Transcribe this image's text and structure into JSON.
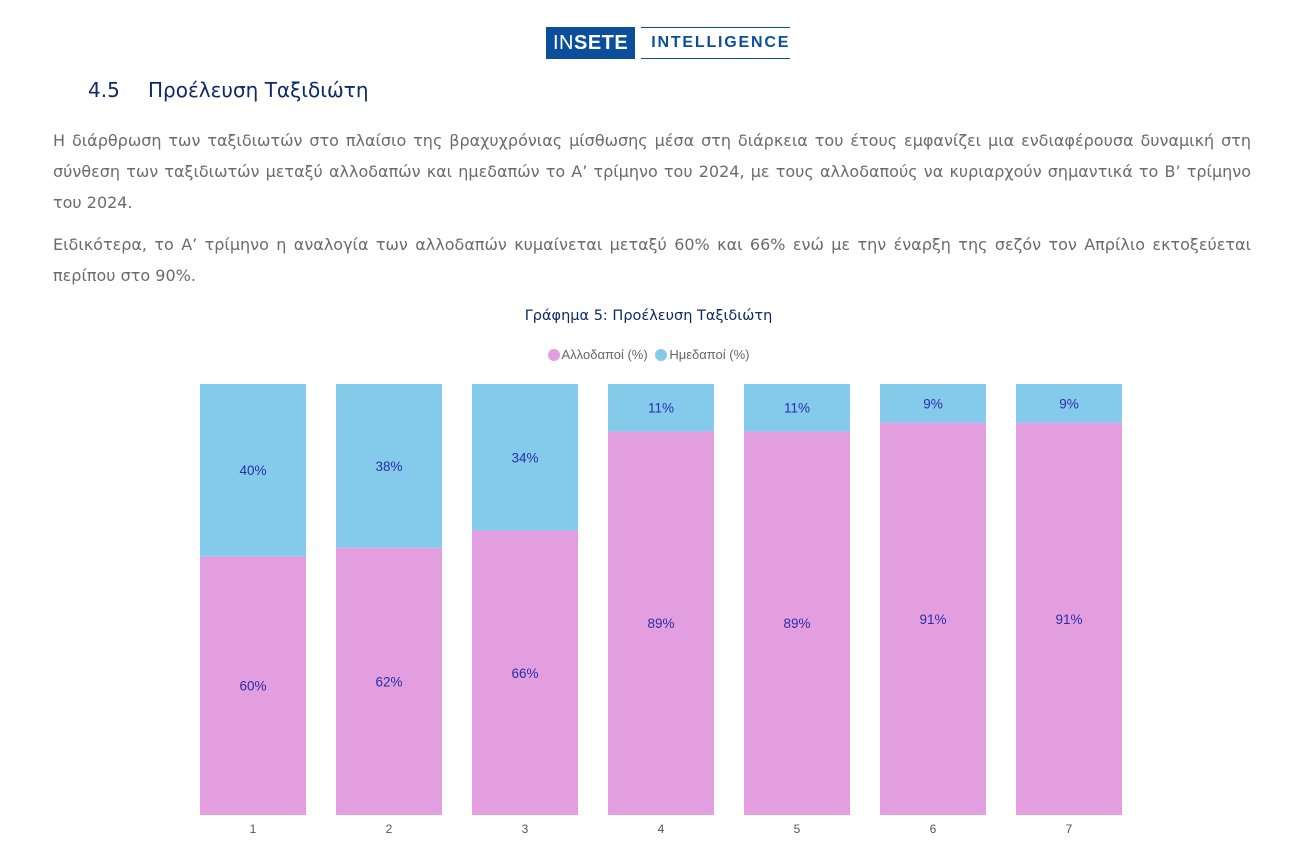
{
  "logo": {
    "part1": "IN",
    "part2": "SETE",
    "part3": "INTELLIGENCE"
  },
  "section": {
    "number": "4.5",
    "title": "Προέλευση Ταξιδιώτη"
  },
  "paragraphs": [
    "Η διάρθρωση των ταξιδιωτών στο πλαίσιο της βραχυχρόνιας μίσθωσης μέσα στη διάρκεια του έτους εμφανίζει μια ενδιαφέρουσα δυναμική στη σύνθεση των ταξιδιωτών μεταξύ αλλοδαπών και ημεδαπών το Α’ τρίμηνο του 2024, με τους αλλοδαπούς να κυριαρχούν σημαντικά το Β’ τρίμηνο του 2024.",
    "Ειδικότερα, το Α’ τρίμηνο η αναλογία των αλλοδαπών κυμαίνεται μεταξύ 60% και 66% ενώ με την έναρξη της σεζόν τον Απρίλιο εκτοξεύεται περίπου  στο 90%."
  ],
  "chart_data": {
    "type": "bar",
    "stacked": true,
    "title": "Γράφημα 5: Προέλευση Ταξιδιώτη",
    "categories": [
      "1",
      "2",
      "3",
      "4",
      "5",
      "6",
      "7"
    ],
    "series": [
      {
        "name": "Αλλοδαποί (%)",
        "color": "#e29ede",
        "values": [
          60,
          62,
          66,
          89,
          89,
          91,
          91
        ],
        "labels": [
          "60%",
          "62%",
          "66%",
          "89%",
          "89%",
          "91%",
          "91%"
        ]
      },
      {
        "name": "Ημεδαποί (%)",
        "color": "#83caeb",
        "values": [
          40,
          38,
          34,
          11,
          11,
          9,
          9
        ],
        "labels": [
          "40%",
          "38%",
          "34%",
          "11%",
          "11%",
          "9%",
          "9%"
        ]
      }
    ],
    "ylim": [
      0,
      100
    ],
    "grid": false,
    "legend_position": "top",
    "label_color": "#2b2ea8"
  }
}
